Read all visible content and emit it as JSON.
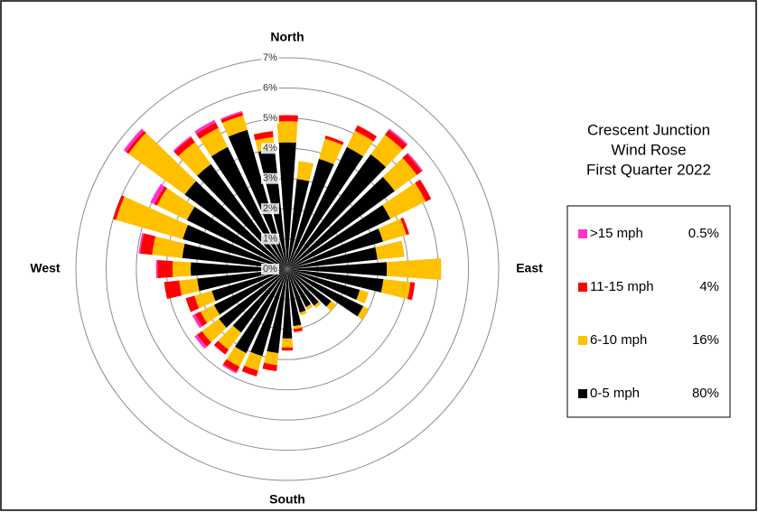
{
  "chart_data": {
    "type": "windrose",
    "title": [
      "Crescent Junction",
      "Wind Rose",
      "First Quarter 2022"
    ],
    "categories": [
      "North",
      null,
      null,
      null,
      null,
      null,
      null,
      null,
      null,
      "East",
      null,
      null,
      null,
      null,
      null,
      null,
      null,
      null,
      "South",
      null,
      null,
      null,
      null,
      null,
      null,
      null,
      null,
      "West",
      null,
      null,
      null,
      null,
      null,
      null,
      null,
      null
    ],
    "rlim": [
      0,
      7
    ],
    "rticks": [
      {
        "value": 0,
        "label": "0%"
      },
      {
        "value": 1,
        "label": "1%"
      },
      {
        "value": 2,
        "label": "2%"
      },
      {
        "value": 3,
        "label": "3%"
      },
      {
        "value": 4,
        "label": "4%"
      },
      {
        "value": 5,
        "label": "5%"
      },
      {
        "value": 6,
        "label": "6%"
      },
      {
        "value": 7,
        "label": "7%"
      }
    ],
    "series": [
      {
        "name": "0-5 mph",
        "share": "80%",
        "color": "#000000",
        "values": [
          4.2,
          3.0,
          3.8,
          4.5,
          4.7,
          4.4,
          3.8,
          3.3,
          3.0,
          3.3,
          3.2,
          2.5,
          2.8,
          1.8,
          1.5,
          1.4,
          1.5,
          1.9,
          2.3,
          2.8,
          3.0,
          3.1,
          2.6,
          2.8,
          2.7,
          2.6,
          3.0,
          3.2,
          3.5,
          3.6,
          3.7,
          4.2,
          4.3,
          4.5,
          4.8,
          4.0
        ]
      },
      {
        "name": "6-10 mph",
        "share": "16%",
        "color": "#ffc000",
        "values": [
          0.7,
          0.6,
          0.7,
          0.6,
          0.8,
          0.9,
          1.3,
          0.8,
          0.9,
          1.8,
          0.9,
          0.3,
          0.2,
          0.2,
          0.1,
          0.1,
          0.1,
          0.1,
          0.3,
          0.4,
          0.5,
          0.5,
          0.7,
          0.7,
          0.5,
          0.6,
          0.6,
          0.6,
          1.0,
          2.3,
          1.1,
          2.3,
          0.9,
          0.7,
          0.5,
          0.4
        ]
      },
      {
        "name": "11-15 mph",
        "share": "4%",
        "color": "#ff0000",
        "values": [
          0.2,
          0,
          0.1,
          0.2,
          0.2,
          0.2,
          0.2,
          0.1,
          0,
          0,
          0.15,
          0,
          0,
          0,
          0,
          0,
          0,
          0.1,
          0.1,
          0.2,
          0.2,
          0.2,
          0.2,
          0.2,
          0.2,
          0.3,
          0.5,
          0.5,
          0.4,
          0.1,
          0.1,
          0.1,
          0.2,
          0.2,
          0.1,
          0.2
        ]
      },
      {
        "name": ">15 mph",
        "share": "0.5%",
        "color": "#ff33cc",
        "values": [
          0,
          0,
          0,
          0,
          0.05,
          0.05,
          0,
          0,
          0,
          0,
          0,
          0,
          0,
          0,
          0,
          0,
          0,
          0,
          0,
          0,
          0,
          0.05,
          0,
          0.1,
          0.1,
          0,
          0,
          0.05,
          0.05,
          0,
          0.15,
          0.1,
          0.05,
          0.1,
          0.05,
          0
        ]
      }
    ]
  }
}
